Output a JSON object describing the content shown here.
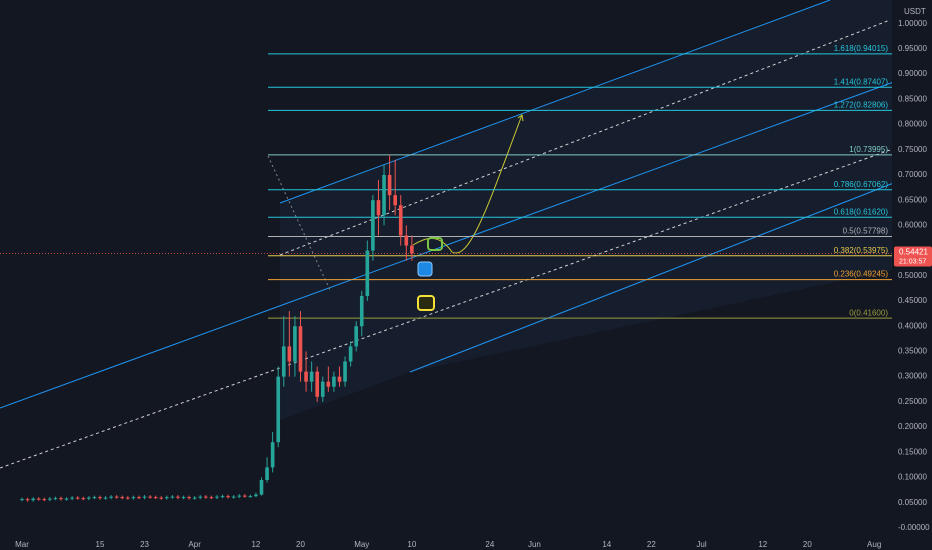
{
  "chart_data": {
    "type": "candlestick",
    "currency": "USDT",
    "up_color": "#26a69a",
    "down_color": "#ef5350",
    "x": [
      0,
      1,
      2,
      3,
      4,
      5,
      6,
      7,
      8,
      9,
      10,
      11,
      12,
      13,
      14,
      15,
      16,
      17,
      18,
      19,
      20,
      21,
      22,
      23,
      24,
      25,
      26,
      27,
      28,
      29,
      30,
      31,
      32,
      33,
      34,
      35,
      36,
      37,
      38,
      39,
      40,
      41,
      42,
      43,
      44,
      45,
      46,
      47,
      48,
      49,
      50,
      51,
      52,
      53,
      54,
      55,
      56,
      57,
      58,
      59,
      60,
      61,
      62,
      63,
      64,
      65,
      66,
      67,
      68,
      69,
      70
    ],
    "open": [
      0.056,
      0.057,
      0.055,
      0.058,
      0.057,
      0.056,
      0.058,
      0.059,
      0.057,
      0.058,
      0.06,
      0.059,
      0.058,
      0.06,
      0.061,
      0.059,
      0.06,
      0.062,
      0.061,
      0.06,
      0.059,
      0.061,
      0.06,
      0.062,
      0.061,
      0.06,
      0.059,
      0.061,
      0.062,
      0.06,
      0.061,
      0.059,
      0.06,
      0.062,
      0.061,
      0.06,
      0.062,
      0.063,
      0.061,
      0.062,
      0.064,
      0.063,
      0.063,
      0.066,
      0.095,
      0.12,
      0.17,
      0.3,
      0.36,
      0.33,
      0.4,
      0.31,
      0.29,
      0.31,
      0.26,
      0.29,
      0.28,
      0.3,
      0.29,
      0.33,
      0.36,
      0.4,
      0.46,
      0.55,
      0.65,
      0.62,
      0.7,
      0.66,
      0.64,
      0.58,
      0.56
    ],
    "high": [
      0.06,
      0.06,
      0.061,
      0.061,
      0.06,
      0.061,
      0.062,
      0.062,
      0.061,
      0.063,
      0.063,
      0.062,
      0.063,
      0.064,
      0.064,
      0.063,
      0.065,
      0.065,
      0.064,
      0.063,
      0.064,
      0.064,
      0.065,
      0.065,
      0.064,
      0.063,
      0.064,
      0.065,
      0.065,
      0.064,
      0.064,
      0.063,
      0.065,
      0.065,
      0.064,
      0.065,
      0.066,
      0.066,
      0.065,
      0.067,
      0.067,
      0.066,
      0.07,
      0.1,
      0.14,
      0.19,
      0.32,
      0.42,
      0.43,
      0.42,
      0.43,
      0.35,
      0.33,
      0.32,
      0.3,
      0.32,
      0.31,
      0.32,
      0.34,
      0.37,
      0.41,
      0.47,
      0.57,
      0.66,
      0.69,
      0.72,
      0.74,
      0.73,
      0.66,
      0.6,
      0.58
    ],
    "low": [
      0.053,
      0.052,
      0.052,
      0.054,
      0.053,
      0.053,
      0.055,
      0.054,
      0.054,
      0.055,
      0.056,
      0.055,
      0.055,
      0.057,
      0.056,
      0.056,
      0.057,
      0.058,
      0.057,
      0.056,
      0.056,
      0.057,
      0.057,
      0.058,
      0.057,
      0.056,
      0.056,
      0.058,
      0.057,
      0.057,
      0.056,
      0.056,
      0.057,
      0.058,
      0.057,
      0.057,
      0.059,
      0.058,
      0.058,
      0.059,
      0.06,
      0.06,
      0.061,
      0.064,
      0.09,
      0.11,
      0.16,
      0.28,
      0.3,
      0.3,
      0.29,
      0.27,
      0.27,
      0.25,
      0.25,
      0.27,
      0.27,
      0.28,
      0.28,
      0.32,
      0.35,
      0.38,
      0.45,
      0.53,
      0.58,
      0.6,
      0.63,
      0.62,
      0.56,
      0.53,
      0.53
    ],
    "close": [
      0.057,
      0.055,
      0.058,
      0.057,
      0.056,
      0.058,
      0.059,
      0.057,
      0.058,
      0.06,
      0.059,
      0.058,
      0.06,
      0.061,
      0.059,
      0.06,
      0.062,
      0.061,
      0.06,
      0.059,
      0.061,
      0.06,
      0.062,
      0.061,
      0.06,
      0.059,
      0.061,
      0.062,
      0.06,
      0.061,
      0.059,
      0.06,
      0.062,
      0.061,
      0.06,
      0.062,
      0.063,
      0.061,
      0.062,
      0.064,
      0.063,
      0.063,
      0.066,
      0.095,
      0.12,
      0.17,
      0.3,
      0.36,
      0.33,
      0.4,
      0.31,
      0.29,
      0.31,
      0.26,
      0.29,
      0.28,
      0.3,
      0.29,
      0.33,
      0.36,
      0.4,
      0.46,
      0.55,
      0.65,
      0.62,
      0.7,
      0.66,
      0.64,
      0.58,
      0.56,
      0.54421
    ],
    "xlim": [
      -3.95,
      156.2
    ],
    "ylim": [
      -0.024,
      1.047
    ],
    "xticks": [
      {
        "value": 0,
        "label": "Mar"
      },
      {
        "value": 14,
        "label": "15"
      },
      {
        "value": 22,
        "label": "23"
      },
      {
        "value": 31,
        "label": "Apr"
      },
      {
        "value": 42,
        "label": "12"
      },
      {
        "value": 50,
        "label": "20"
      },
      {
        "value": 61,
        "label": "May"
      },
      {
        "value": 70,
        "label": "10"
      },
      {
        "value": 84,
        "label": "24"
      },
      {
        "value": 92,
        "label": "Jun"
      },
      {
        "value": 105,
        "label": "14"
      },
      {
        "value": 113,
        "label": "22"
      },
      {
        "value": 122,
        "label": "Jul"
      },
      {
        "value": 133,
        "label": "12"
      },
      {
        "value": 141,
        "label": "20"
      },
      {
        "value": 153,
        "label": "Aug"
      }
    ],
    "yticks": [
      {
        "value": 0,
        "label": "-0.00000"
      },
      {
        "value": 0.05,
        "label": "0.05000"
      },
      {
        "value": 0.1,
        "label": "0.10000"
      },
      {
        "value": 0.15,
        "label": "0.15000"
      },
      {
        "value": 0.2,
        "label": "0.20000"
      },
      {
        "value": 0.25,
        "label": "0.25000"
      },
      {
        "value": 0.3,
        "label": "0.30000"
      },
      {
        "value": 0.35,
        "label": "0.35000"
      },
      {
        "value": 0.4,
        "label": "0.40000"
      },
      {
        "value": 0.45,
        "label": "0.45000"
      },
      {
        "value": 0.5,
        "label": "0.50000"
      },
      {
        "value": 0.55,
        "label": "0.55000"
      },
      {
        "value": 0.6,
        "label": "0.60000"
      },
      {
        "value": 0.65,
        "label": "0.65000"
      },
      {
        "value": 0.7,
        "label": "0.70000"
      },
      {
        "value": 0.75,
        "label": "0.75000"
      },
      {
        "value": 0.8,
        "label": "0.80000"
      },
      {
        "value": 0.85,
        "label": "0.85000"
      },
      {
        "value": 0.9,
        "label": "0.90000"
      },
      {
        "value": 0.95,
        "label": "0.95000"
      },
      {
        "value": 1.0,
        "label": "1.00000"
      }
    ],
    "last_price": 0.54421,
    "countdown": "21:03:57",
    "fib_levels": [
      {
        "value": 0.94015,
        "label": "1.618(0.94015)",
        "color": "#26c6da"
      },
      {
        "value": 0.87407,
        "label": "1.414(0.87407)",
        "color": "#26c6da"
      },
      {
        "value": 0.82806,
        "label": "1.272(0.82806)",
        "color": "#26c6da"
      },
      {
        "value": 0.73995,
        "label": "1(0.73995)",
        "color": "#80cbc4"
      },
      {
        "value": 0.67062,
        "label": "0.786(0.67062)",
        "color": "#26c6da"
      },
      {
        "value": 0.6162,
        "label": "0.618(0.61620)",
        "color": "#26c6da"
      },
      {
        "value": 0.57798,
        "label": "0.5(0.57798)",
        "color": "#b0b0b0"
      },
      {
        "value": 0.53975,
        "label": "0.382(0.53975)",
        "color": "#e6c84a"
      },
      {
        "value": 0.49245,
        "label": "0.236(0.49245)",
        "color": "#f0a030"
      },
      {
        "value": 0.416,
        "label": "0(0.41600)",
        "color": "#9a9a3a"
      }
    ]
  }
}
